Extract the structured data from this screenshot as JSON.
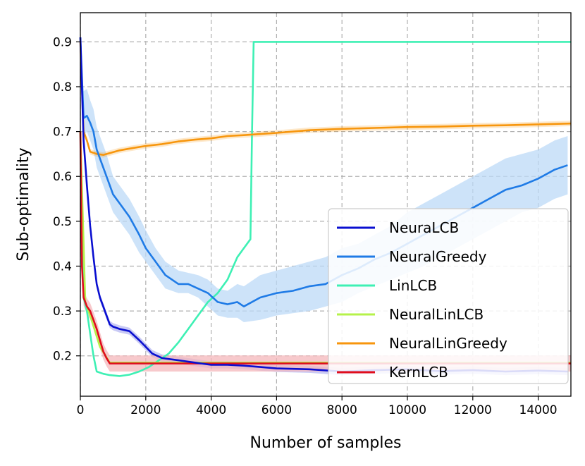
{
  "chart_data": {
    "type": "line",
    "xlabel": "Number of samples",
    "ylabel": "Sub-optimality",
    "xlim": [
      0,
      15000
    ],
    "ylim": [
      0.11,
      0.965
    ],
    "xticks": [
      0,
      2000,
      4000,
      6000,
      8000,
      10000,
      12000,
      14000
    ],
    "yticks": [
      0.2,
      0.3,
      0.4,
      0.5,
      0.6,
      0.7,
      0.8,
      0.9
    ],
    "grid": true,
    "legend_position": "lower-right",
    "series": [
      {
        "name": "NeuraLCB",
        "color": "#0a0fd0",
        "x": [
          0,
          100,
          200,
          300,
          400,
          500,
          600,
          700,
          800,
          900,
          1000,
          1200,
          1500,
          1800,
          2000,
          2200,
          2500,
          3000,
          3500,
          4000,
          4500,
          5000,
          5500,
          6000,
          7000,
          8000,
          9000,
          10000,
          11000,
          12000,
          13000,
          14000,
          14900
        ],
        "y": [
          0.91,
          0.68,
          0.58,
          0.49,
          0.42,
          0.36,
          0.33,
          0.31,
          0.29,
          0.27,
          0.265,
          0.26,
          0.255,
          0.235,
          0.22,
          0.205,
          0.195,
          0.19,
          0.185,
          0.18,
          0.18,
          0.178,
          0.175,
          0.172,
          0.17,
          0.165,
          0.168,
          0.17,
          0.166,
          0.168,
          0.165,
          0.167,
          0.165
        ],
        "band": 0.008
      },
      {
        "name": "NeuralGreedy",
        "color": "#1f7be6",
        "band_color": "#bcd9f7",
        "x": [
          0,
          100,
          200,
          300,
          400,
          500,
          600,
          800,
          1000,
          1200,
          1500,
          1800,
          2000,
          2300,
          2600,
          3000,
          3300,
          3600,
          3900,
          4200,
          4500,
          4800,
          5000,
          5500,
          6000,
          6500,
          7000,
          7500,
          8000,
          8500,
          9000,
          9500,
          10000,
          10500,
          11000,
          11500,
          12000,
          12500,
          13000,
          13500,
          14000,
          14500,
          14900
        ],
        "y": [
          0.91,
          0.73,
          0.735,
          0.72,
          0.7,
          0.66,
          0.64,
          0.6,
          0.56,
          0.54,
          0.51,
          0.47,
          0.44,
          0.41,
          0.38,
          0.36,
          0.36,
          0.35,
          0.34,
          0.32,
          0.315,
          0.32,
          0.31,
          0.33,
          0.34,
          0.345,
          0.355,
          0.36,
          0.38,
          0.395,
          0.415,
          0.43,
          0.45,
          0.47,
          0.49,
          0.51,
          0.53,
          0.55,
          0.57,
          0.58,
          0.595,
          0.615,
          0.625
        ],
        "band_low": [
          0.91,
          0.69,
          0.7,
          0.68,
          0.66,
          0.62,
          0.6,
          0.56,
          0.52,
          0.5,
          0.47,
          0.43,
          0.41,
          0.38,
          0.35,
          0.34,
          0.34,
          0.33,
          0.31,
          0.29,
          0.285,
          0.285,
          0.275,
          0.28,
          0.29,
          0.295,
          0.3,
          0.31,
          0.32,
          0.34,
          0.355,
          0.37,
          0.385,
          0.4,
          0.42,
          0.44,
          0.46,
          0.48,
          0.5,
          0.52,
          0.53,
          0.55,
          0.56
        ],
        "band_high": [
          0.91,
          0.79,
          0.795,
          0.77,
          0.75,
          0.71,
          0.69,
          0.65,
          0.6,
          0.58,
          0.55,
          0.51,
          0.48,
          0.44,
          0.41,
          0.39,
          0.385,
          0.38,
          0.37,
          0.35,
          0.345,
          0.36,
          0.355,
          0.38,
          0.39,
          0.4,
          0.41,
          0.42,
          0.44,
          0.45,
          0.47,
          0.49,
          0.52,
          0.54,
          0.56,
          0.58,
          0.6,
          0.62,
          0.64,
          0.65,
          0.66,
          0.68,
          0.69
        ]
      },
      {
        "name": "LinLCB",
        "color": "#3ef0b4",
        "x": [
          0,
          100,
          200,
          300,
          400,
          500,
          700,
          900,
          1200,
          1500,
          1800,
          2100,
          2400,
          2700,
          3000,
          3300,
          3600,
          3900,
          4200,
          4500,
          4800,
          5000,
          5200,
          5250,
          5300,
          6000,
          8000,
          10000,
          12000,
          14000,
          15000
        ],
        "y": [
          0.7,
          0.33,
          0.3,
          0.25,
          0.2,
          0.165,
          0.16,
          0.157,
          0.155,
          0.158,
          0.165,
          0.175,
          0.19,
          0.205,
          0.23,
          0.26,
          0.29,
          0.32,
          0.34,
          0.37,
          0.42,
          0.44,
          0.46,
          0.7,
          0.9,
          0.9,
          0.9,
          0.9,
          0.9,
          0.9,
          0.9
        ]
      },
      {
        "name": "NeuralLinLCB",
        "color": "#b5f24a",
        "x": [
          0,
          150,
          300,
          600,
          900,
          2000,
          4000,
          6000,
          8000,
          10000,
          12000,
          14000,
          15000
        ],
        "y": [
          0.7,
          0.32,
          0.29,
          0.22,
          0.185,
          0.185,
          0.185,
          0.185,
          0.185,
          0.185,
          0.185,
          0.185,
          0.185
        ]
      },
      {
        "name": "NeuralLinGreedy",
        "color": "#f7960d",
        "x": [
          0,
          100,
          200,
          300,
          500,
          700,
          900,
          1200,
          1500,
          2000,
          2500,
          3000,
          3500,
          4000,
          4500,
          5000,
          6000,
          7000,
          8000,
          9000,
          10000,
          11000,
          12000,
          13000,
          14000,
          15000
        ],
        "y": [
          0.9,
          0.7,
          0.68,
          0.655,
          0.65,
          0.648,
          0.652,
          0.658,
          0.662,
          0.668,
          0.672,
          0.678,
          0.682,
          0.685,
          0.69,
          0.692,
          0.697,
          0.703,
          0.706,
          0.708,
          0.71,
          0.711,
          0.713,
          0.714,
          0.716,
          0.718
        ],
        "band": 0.006
      },
      {
        "name": "KernLCB",
        "color": "#e00d1d",
        "band_color": "#f4b7bb",
        "x": [
          0,
          50,
          100,
          200,
          300,
          400,
          500,
          600,
          700,
          800,
          900,
          1200,
          2000,
          4000,
          6000,
          8000,
          10000,
          12000,
          14000,
          15000
        ],
        "y": [
          0.7,
          0.4,
          0.33,
          0.31,
          0.3,
          0.28,
          0.26,
          0.235,
          0.21,
          0.195,
          0.183,
          0.183,
          0.183,
          0.183,
          0.183,
          0.183,
          0.183,
          0.183,
          0.183,
          0.183
        ],
        "band": 0.018
      }
    ]
  }
}
